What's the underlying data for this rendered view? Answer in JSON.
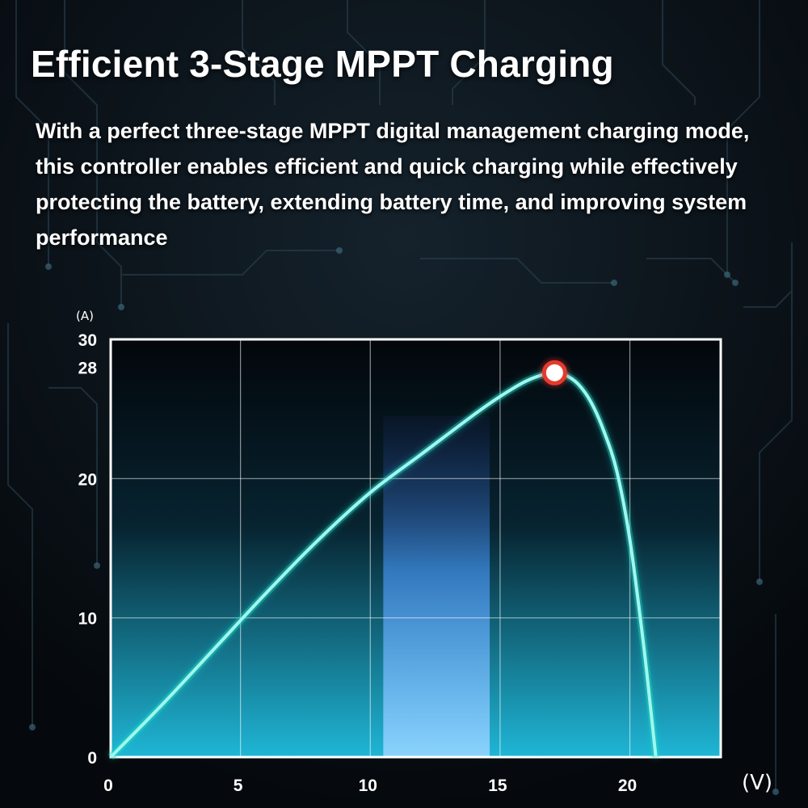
{
  "header": {
    "title": "Efficient 3-Stage MPPT Charging",
    "description": "With a perfect three-stage MPPT digital management charging mode, this controller enables efficient and quick charging while effectively protecting the battery, extending battery time, and improving system performance"
  },
  "colors": {
    "background": "#0a1016",
    "curve": "#7ef3e6",
    "curve_glow": "#1fd6c6",
    "plot_top": "#03060b",
    "plot_bottom": "#1fb6d6",
    "highlight_band": "#58a8f0",
    "peak_marker": "#e53a2e",
    "grid": "#ffffff"
  },
  "chart_data": {
    "type": "line",
    "xlabel": "(V)",
    "ylabel": "(A)",
    "xlim": [
      0,
      23.5
    ],
    "ylim": [
      0,
      30
    ],
    "x_ticks": [
      "0",
      "5",
      "10",
      "15",
      "20"
    ],
    "x_tick_values": [
      0,
      5,
      10,
      15,
      20
    ],
    "y_ticks": [
      "0",
      "10",
      "20",
      "28",
      "30"
    ],
    "y_tick_values": [
      0,
      10,
      20,
      28,
      30
    ],
    "grid": true,
    "highlight_band_x": [
      10.5,
      14.6
    ],
    "peak_point": {
      "x": 17.1,
      "y": 27.6
    },
    "series": [
      {
        "x": [
          0,
          2,
          4,
          6,
          8,
          10,
          12,
          14,
          15,
          16,
          16.8,
          17.1,
          17.5,
          18,
          18.5,
          19,
          19.5,
          20,
          20.5,
          20.8,
          21
        ],
        "y": [
          0,
          3.8,
          7.8,
          11.8,
          15.6,
          19.0,
          21.8,
          24.6,
          25.9,
          27.0,
          27.55,
          27.6,
          27.45,
          26.8,
          25.5,
          23.4,
          20.5,
          15.6,
          8.5,
          3.5,
          0
        ]
      }
    ]
  }
}
